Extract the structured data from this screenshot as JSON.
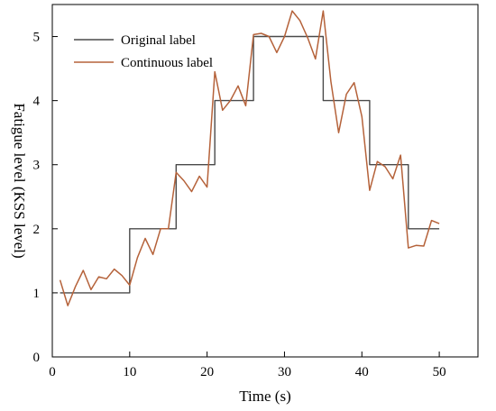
{
  "chart_data": {
    "type": "line",
    "title": "",
    "xlabel": "Time (s)",
    "ylabel": "Fatigue level (KSS level)",
    "xlim": [
      0,
      55
    ],
    "ylim": [
      0,
      5.5
    ],
    "xticks": [
      "0",
      "10",
      "20",
      "30",
      "40",
      "50"
    ],
    "yticks": [
      "0",
      "1",
      "2",
      "3",
      "4",
      "5"
    ],
    "grid": false,
    "legend": "top-left",
    "series": [
      {
        "name": "Original label",
        "color": "#4a4a4a",
        "step": true,
        "x": [
          1,
          10,
          10,
          16,
          16,
          21,
          21,
          26,
          26,
          35,
          35,
          41,
          41,
          46,
          46,
          50
        ],
        "y": [
          1,
          1,
          2,
          2,
          3,
          3,
          4,
          4,
          5,
          5,
          4,
          4,
          3,
          3,
          2,
          2
        ]
      },
      {
        "name": "Continuous label",
        "color": "#b5623a",
        "step": false,
        "x": [
          1,
          2,
          3,
          4,
          5,
          6,
          7,
          8,
          9,
          10,
          11,
          12,
          13,
          14,
          15,
          16,
          17,
          18,
          19,
          20,
          21,
          22,
          23,
          24,
          25,
          26,
          27,
          28,
          29,
          30,
          31,
          32,
          33,
          34,
          35,
          36,
          37,
          38,
          39,
          40,
          41,
          42,
          43,
          44,
          45,
          46,
          47,
          48,
          49,
          50
        ],
        "y": [
          1.2,
          0.8,
          1.1,
          1.35,
          1.05,
          1.25,
          1.22,
          1.37,
          1.27,
          1.12,
          1.55,
          1.85,
          1.6,
          2.0,
          2.0,
          2.88,
          2.75,
          2.58,
          2.82,
          2.65,
          4.45,
          3.85,
          4.0,
          4.23,
          3.92,
          5.03,
          5.05,
          5.0,
          4.75,
          5.0,
          5.4,
          5.25,
          4.98,
          4.65,
          5.4,
          4.3,
          3.5,
          4.1,
          4.28,
          3.75,
          2.6,
          3.05,
          2.97,
          2.78,
          3.15,
          1.7,
          1.74,
          1.73,
          2.13,
          2.08
        ]
      }
    ]
  }
}
